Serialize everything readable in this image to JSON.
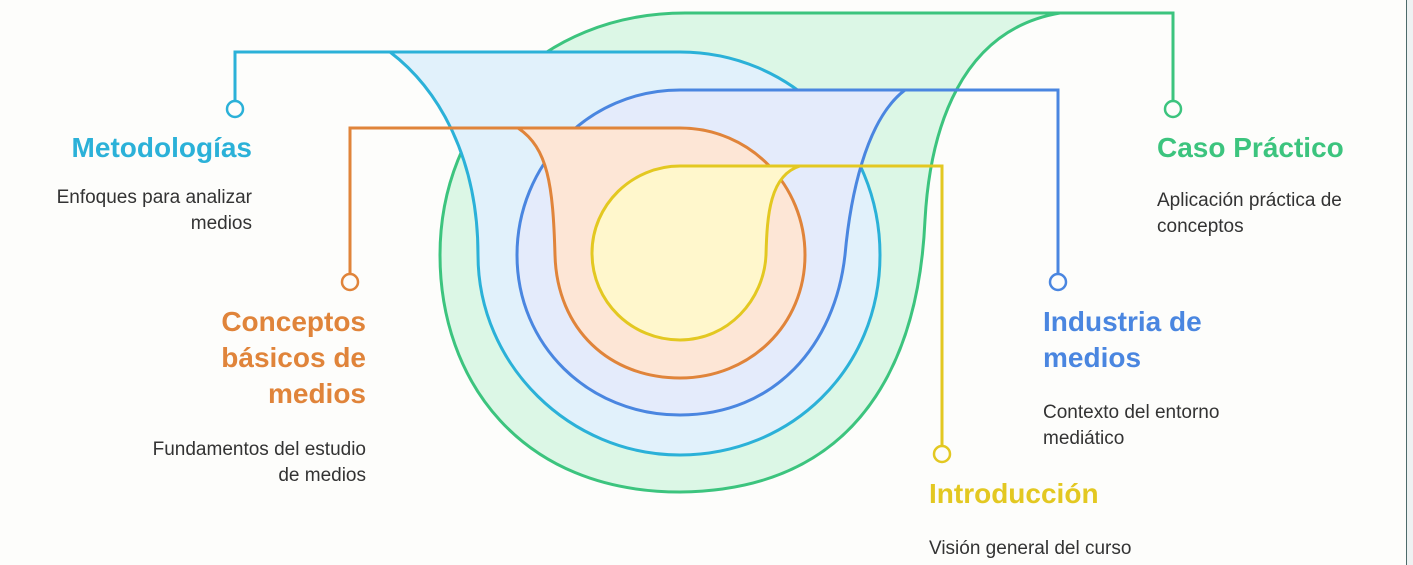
{
  "colors": {
    "metodologias": "#2bb1d8",
    "conceptos": "#e0843a",
    "industria": "#4a86e0",
    "introduccion": "#e3c821",
    "caso": "#3cc47e"
  },
  "items": {
    "metodologias": {
      "title": "Metodologías",
      "desc": "Enfoques para analizar medios"
    },
    "conceptos": {
      "title": "Conceptos básicos de medios",
      "desc": "Fundamentos del estudio de medios"
    },
    "industria": {
      "title": "Industria de medios",
      "desc": "Contexto del entorno mediático"
    },
    "introduccion": {
      "title": "Introducción",
      "desc": "Visión general del curso"
    },
    "caso": {
      "title": "Caso Práctico",
      "desc": "Aplicación práctica de conceptos"
    }
  }
}
